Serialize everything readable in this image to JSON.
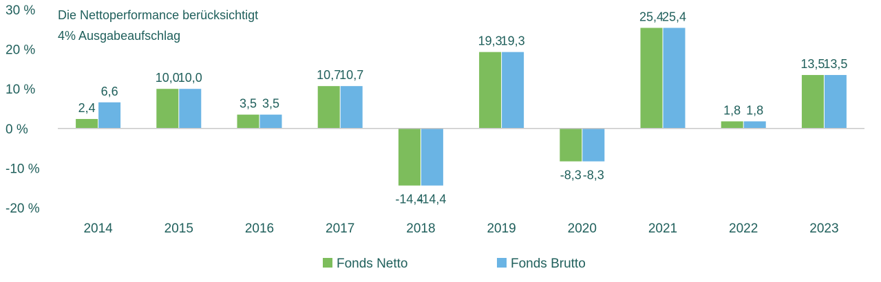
{
  "chart_data": {
    "type": "bar",
    "categories": [
      "2014",
      "2015",
      "2016",
      "2017",
      "2018",
      "2019",
      "2020",
      "2021",
      "2022",
      "2023"
    ],
    "series": [
      {
        "name": "Fonds Netto",
        "color": "#7dbd5c",
        "values": [
          2.4,
          10.0,
          3.5,
          10.7,
          -14.4,
          19.3,
          -8.3,
          25.4,
          1.8,
          13.5
        ],
        "labels": [
          "2,4",
          "10,0",
          "3,5",
          "10,7",
          "-14,4",
          "19,3",
          "-8,3",
          "25,4",
          "1,8",
          "13,5"
        ]
      },
      {
        "name": "Fonds Brutto",
        "color": "#6ab4e4",
        "values": [
          6.6,
          10.0,
          3.5,
          10.7,
          -14.4,
          19.3,
          -8.3,
          25.4,
          1.8,
          13.5
        ],
        "labels": [
          "6,6",
          "10,0",
          "3,5",
          "10,7",
          "-14,4",
          "19,3",
          "-8,3",
          "25,4",
          "1,8",
          "13,5"
        ]
      }
    ],
    "yticks": [
      30,
      20,
      10,
      0,
      -10,
      -20
    ],
    "ytick_labels": [
      "30 %",
      "20 %",
      "10 %",
      "0 %",
      "-10 %",
      "-20 %"
    ],
    "ylim": [
      -20,
      30
    ],
    "annotation_lines": [
      "Die Nettoperformance berücksichtigt",
      "4% Ausgabeaufschlag"
    ],
    "legend_position": "bottom-center",
    "grid": false,
    "text_color": "#1f5f5b",
    "axis_color": "#c8c8c8"
  }
}
